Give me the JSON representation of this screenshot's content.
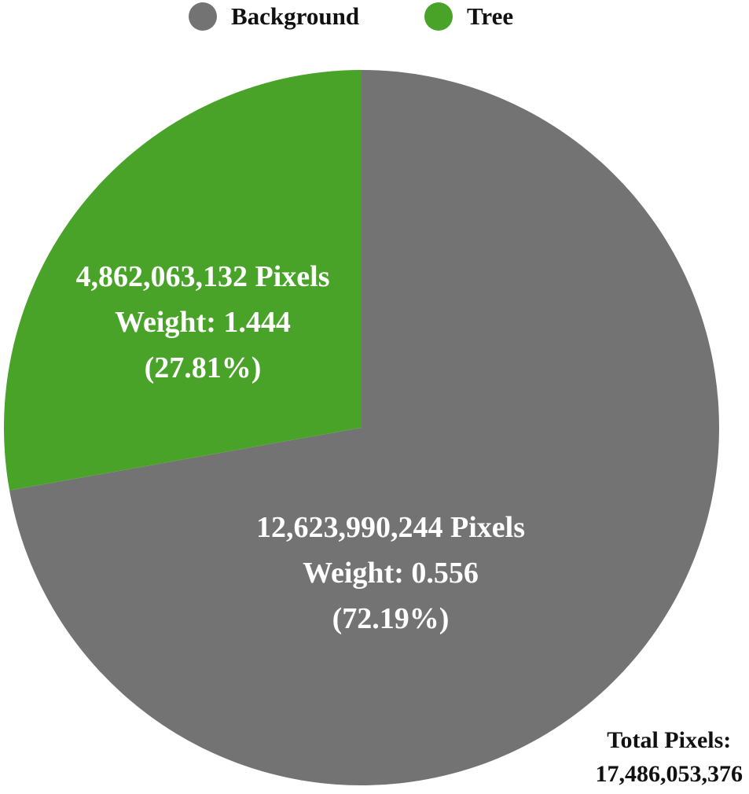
{
  "colors": {
    "background": "#737373",
    "tree": "#4aa329"
  },
  "legend": [
    {
      "label": "Background",
      "color": "#737373"
    },
    {
      "label": "Tree",
      "color": "#4aa329"
    }
  ],
  "chart_data": {
    "type": "pie",
    "title": "",
    "legend_position": "top",
    "slices": [
      {
        "name": "Background",
        "value": 12623990244,
        "percent": 72.19,
        "weight": 0.556,
        "color": "#737373",
        "label_lines": [
          "12,623,990,244 Pixels",
          "Weight: 0.556",
          "(72.19%)"
        ]
      },
      {
        "name": "Tree",
        "value": 4862063132,
        "percent": 27.81,
        "weight": 1.444,
        "color": "#4aa329",
        "label_lines": [
          "4,862,063,132 Pixels",
          "Weight: 1.444",
          "(27.81%)"
        ]
      }
    ],
    "total_label": "Total Pixels:",
    "total_value": "17,486,053,376"
  }
}
